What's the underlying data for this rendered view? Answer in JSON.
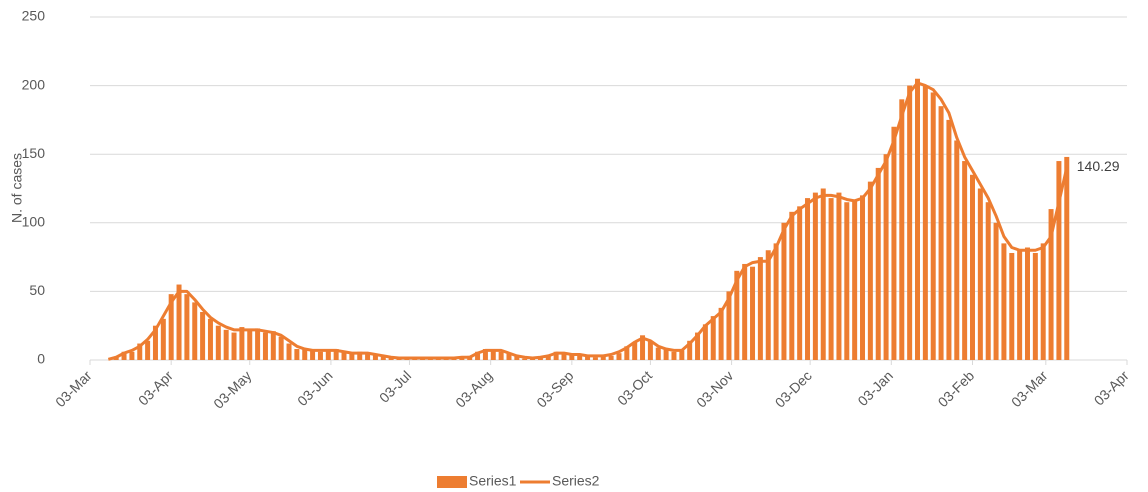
{
  "chart_data": {
    "type": "bar_line",
    "y_label": "N. of cases",
    "x": [
      7,
      10,
      13,
      16,
      19,
      22,
      25,
      28,
      31,
      34,
      37,
      40,
      43,
      46,
      49,
      52,
      55,
      58,
      61,
      64,
      67,
      70,
      73,
      76,
      79,
      82,
      85,
      88,
      91,
      94,
      97,
      100,
      103,
      106,
      109,
      112,
      115,
      118,
      121,
      124,
      127,
      130,
      133,
      136,
      139,
      142,
      145,
      148,
      151,
      154,
      157,
      160,
      163,
      166,
      169,
      172,
      175,
      178,
      181,
      184,
      187,
      190,
      193,
      196,
      199,
      202,
      205,
      208,
      211,
      214,
      217,
      220,
      223,
      226,
      229,
      232,
      235,
      238,
      241,
      244,
      247,
      250,
      253,
      256,
      259,
      262,
      265,
      268,
      271,
      274,
      277,
      280,
      283,
      286,
      289,
      292,
      295,
      298,
      301,
      304,
      307,
      310,
      313,
      316,
      319,
      322,
      325,
      328,
      331,
      334,
      337,
      340,
      343,
      346,
      349,
      352,
      355,
      358,
      361,
      364,
      367,
      370,
      373
    ],
    "series": [
      {
        "name": "Series1",
        "type": "bar",
        "color": "#ED7D31",
        "values": [
          0,
          2,
          6,
          6,
          12,
          14,
          25,
          30,
          48,
          55,
          48,
          42,
          35,
          30,
          25,
          22,
          20,
          24,
          22,
          23,
          20,
          21,
          17,
          12,
          8,
          8,
          7,
          6,
          7,
          8,
          6,
          5,
          6,
          4,
          4,
          3,
          2,
          1,
          2,
          1,
          1,
          2,
          1,
          2,
          1,
          2,
          3,
          6,
          8,
          7,
          6,
          5,
          3,
          1,
          1,
          2,
          3,
          6,
          5,
          4,
          3,
          3,
          2,
          4,
          3,
          5,
          10,
          13,
          18,
          14,
          9,
          8,
          6,
          7,
          14,
          20,
          26,
          32,
          38,
          50,
          65,
          70,
          68,
          75,
          80,
          85,
          100,
          108,
          112,
          118,
          122,
          125,
          118,
          122,
          115,
          116,
          120,
          130,
          140,
          150,
          170,
          190,
          200,
          205,
          200,
          195,
          185,
          175,
          160,
          145,
          135,
          125,
          115,
          100,
          85,
          78,
          80,
          82,
          78,
          85,
          110,
          145,
          148
        ]
      },
      {
        "name": "Series2",
        "type": "line",
        "color": "#ED7D31",
        "values": [
          0.5,
          2,
          5,
          7,
          10,
          15,
          22,
          32,
          42,
          50,
          50,
          44,
          37,
          31,
          27,
          24,
          22,
          22,
          22,
          22,
          21,
          20,
          18,
          14,
          10,
          8,
          7,
          7,
          7,
          7,
          6,
          5,
          5,
          5,
          4,
          3,
          2,
          1.5,
          1.5,
          1.5,
          1.5,
          1.5,
          1.5,
          1.5,
          1.5,
          2,
          2,
          5,
          7,
          7,
          7,
          5,
          3,
          2,
          1.5,
          2,
          3,
          5,
          5,
          4,
          4,
          3,
          3,
          3,
          4,
          6,
          9,
          13,
          16,
          14,
          10,
          8,
          7,
          7,
          12,
          18,
          25,
          30,
          35,
          45,
          58,
          68,
          71,
          72,
          72,
          82,
          95,
          105,
          110,
          114,
          118,
          120,
          120,
          119,
          117,
          116,
          118,
          125,
          135,
          145,
          160,
          178,
          195,
          202,
          200,
          197,
          190,
          180,
          162,
          148,
          138,
          128,
          118,
          105,
          90,
          82,
          80,
          80,
          80,
          82,
          90,
          115,
          140.29
        ]
      }
    ],
    "xlim": [
      0,
      396
    ],
    "xticks": [
      {
        "value": 0,
        "label": "03-Mar"
      },
      {
        "value": 31,
        "label": "03-Apr"
      },
      {
        "value": 61,
        "label": "03-May"
      },
      {
        "value": 92,
        "label": "03-Jun"
      },
      {
        "value": 122,
        "label": "03-Jul"
      },
      {
        "value": 153,
        "label": "03-Aug"
      },
      {
        "value": 184,
        "label": "03-Sep"
      },
      {
        "value": 214,
        "label": "03-Oct"
      },
      {
        "value": 245,
        "label": "03-Nov"
      },
      {
        "value": 275,
        "label": "03-Dec"
      },
      {
        "value": 306,
        "label": "03-Jan"
      },
      {
        "value": 337,
        "label": "03-Feb"
      },
      {
        "value": 365,
        "label": "03-Mar"
      },
      {
        "value": 396,
        "label": "03-Apr"
      }
    ],
    "ylim": [
      0,
      250
    ],
    "yticks": [
      0,
      50,
      100,
      150,
      200,
      250
    ],
    "grid": true,
    "legend": "bottom"
  }
}
